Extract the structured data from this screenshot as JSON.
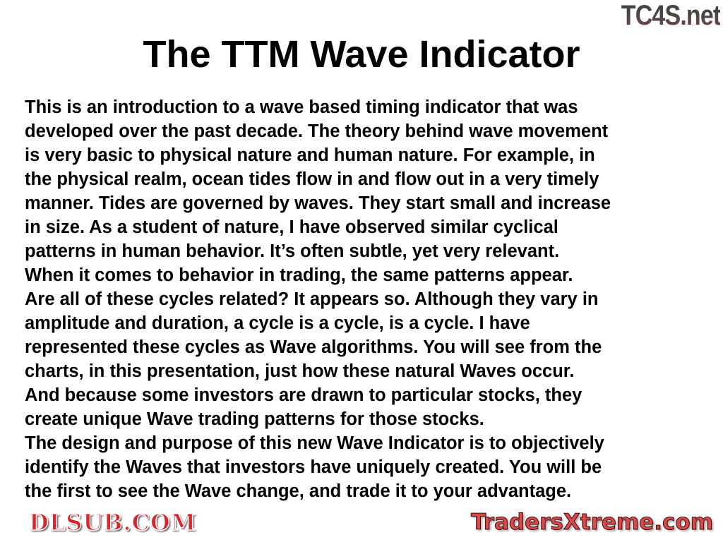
{
  "slide": {
    "title": "The TTM Wave Indicator",
    "lines": [
      "This is an introduction to a wave based timing indicator that was",
      "developed over the past decade. The theory behind wave movement",
      "is very basic to physical nature and human nature. For example, in",
      "the physical realm, ocean tides flow in and flow out in a very timely",
      "manner. Tides are governed by waves. They start small and increase",
      "in size. As a student of nature, I have observed similar cyclical",
      "patterns in human behavior. It’s often subtle, yet very relevant.",
      "When it comes to behavior in trading, the same patterns appear.",
      "Are all of these cycles related? It appears so. Although they vary in",
      "amplitude and duration, a cycle is a cycle, is a cycle. I have",
      "represented these cycles as Wave algorithms. You will see from the",
      "charts, in this presentation, just how these natural Waves occur.",
      "And because some investors are drawn to particular stocks, they",
      "create unique Wave trading patterns for those stocks.",
      "The design and purpose of this new Wave Indicator is to objectively",
      "identify the Waves that investors have uniquely created. You will be",
      "the first to see the Wave change, and trade it to your advantage."
    ]
  },
  "watermarks": {
    "top_right": "TC4S.net",
    "center": "DLSUB.COM",
    "bottom_right": "TradersXtreme.com"
  }
}
